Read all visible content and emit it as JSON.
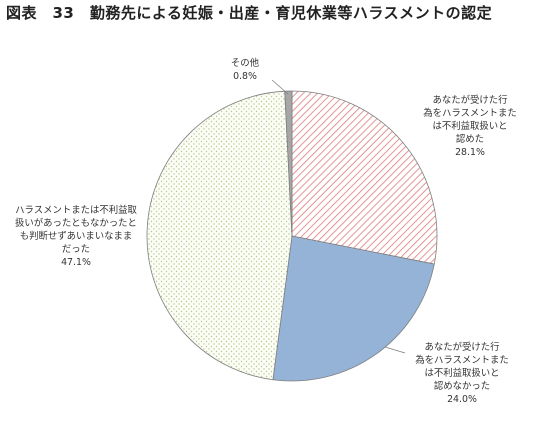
{
  "title": "図表　33　勤務先による妊娠・出産・育児休業等ハラスメントの認定",
  "chart_data": {
    "type": "pie",
    "start_angle_deg": 0,
    "direction": "clockwise",
    "slices": [
      {
        "label_lines": [
          "あなたが受けた行",
          "為をハラスメントまた",
          "は不利益取扱いと",
          "認めた"
        ],
        "value": 28.1,
        "value_label": "28.1%",
        "color": "#e07a7a",
        "fill": "hatch"
      },
      {
        "label_lines": [
          "あなたが受けた行",
          "為をハラスメントまた",
          "は不利益取扱いと",
          "認めなかった"
        ],
        "value": 24.0,
        "value_label": "24.0%",
        "color": "#95b3d7",
        "fill": "solid"
      },
      {
        "label_lines": [
          "ハラスメントまたは不利益取",
          "扱いがあったともなかったと",
          "も判断せずあいまいなまま",
          "だった"
        ],
        "value": 47.1,
        "value_label": "47.1%",
        "color": "#c4d79b",
        "fill": "dots"
      },
      {
        "label_lines": [
          "その他"
        ],
        "value": 0.8,
        "value_label": "0.8%",
        "color": "#a6a6a6",
        "fill": "solid"
      }
    ]
  }
}
